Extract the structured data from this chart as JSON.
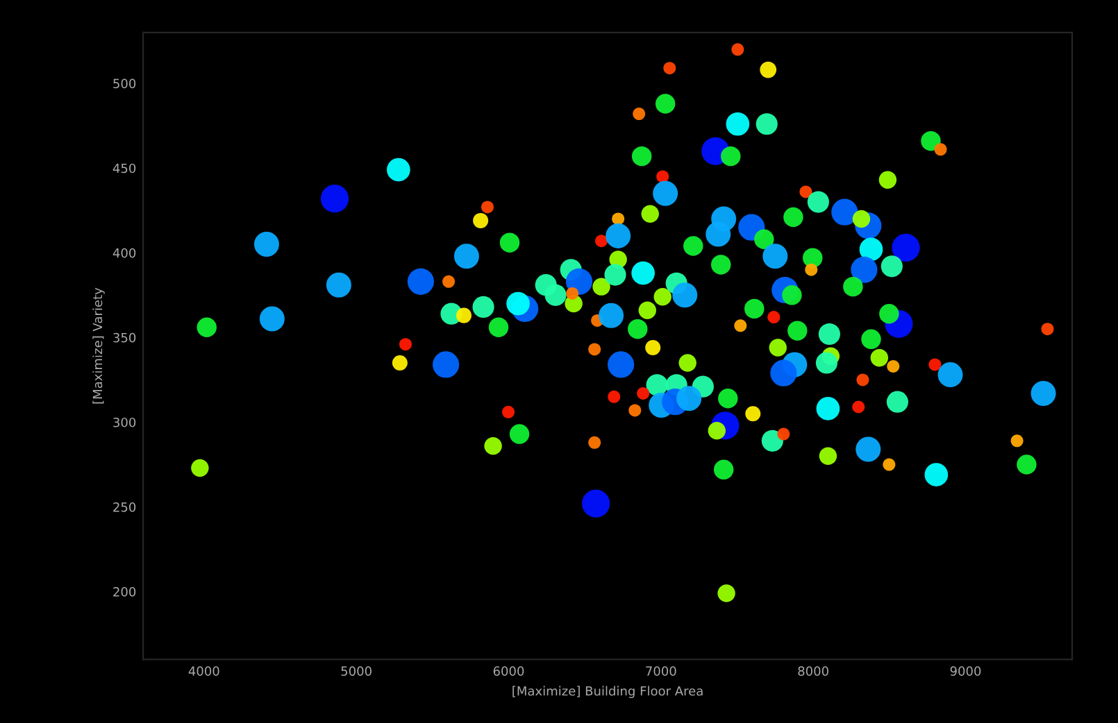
{
  "chart_data": {
    "type": "bubble",
    "xlabel": "[Maximize] Building Floor Area",
    "ylabel": "[Maximize] Variety",
    "xlim": [
      3600,
      9700
    ],
    "ylim": [
      160,
      530
    ],
    "xticks": [
      4000,
      5000,
      6000,
      7000,
      8000,
      9000
    ],
    "yticks": [
      200,
      250,
      300,
      350,
      400,
      450,
      500
    ],
    "grid": false,
    "legend": false,
    "x": [
      3973,
      4018,
      4411,
      4447,
      4858,
      4885,
      5277,
      5861,
      5816,
      6007,
      5724,
      5423,
      5606,
      5624,
      5706,
      5834,
      5934,
      6108,
      6062,
      5323,
      5286,
      5588,
      5998,
      6071,
      5898,
      6245,
      6308,
      6409,
      6463,
      6427,
      6418,
      6564,
      6692,
      6564,
      6573,
      6609,
      6582,
      6673,
      6737,
      6719,
      6719,
      6719,
      6609,
      6700,
      7504,
      7057,
      7704,
      7029,
      6856,
      7504,
      7695,
      7358,
      7458,
      6874,
      8772,
      8836,
      7011,
      7029,
      8489,
      7951,
      8033,
      8206,
      7869,
      6929,
      8361,
      8316,
      7412,
      7595,
      7376,
      7677,
      7212,
      8380,
      8608,
      7750,
      7996,
      7987,
      7394,
      6883,
      8516,
      8334,
      7102,
      7157,
      7011,
      6911,
      8261,
      7814,
      7860,
      7613,
      7522,
      7741,
      6847,
      8562,
      8498,
      7896,
      8106,
      8380,
      6947,
      7768,
      8434,
      8525,
      8115,
      8088,
      7175,
      7878,
      7805,
      8799,
      8900,
      9538,
      8325,
      6974,
      7102,
      7276,
      6883,
      6829,
      7002,
      7093,
      7184,
      7440,
      7604,
      7422,
      7367,
      8297,
      8553,
      8097,
      7732,
      7805,
      8097,
      8361,
      8498,
      8808,
      9511,
      9338,
      9401,
      7412,
      7430
    ],
    "values": [
      273,
      356,
      405,
      361,
      432,
      381,
      449,
      427,
      419,
      406,
      398,
      383,
      383,
      364,
      363,
      368,
      356,
      367,
      370,
      346,
      335,
      334,
      306,
      293,
      286,
      381,
      375,
      390,
      383,
      370,
      376,
      343,
      315,
      288,
      252,
      407,
      360,
      363,
      334,
      420,
      410,
      396,
      380,
      387,
      520,
      509,
      508,
      488,
      482,
      476,
      476,
      460,
      457,
      457,
      466,
      461,
      445,
      435,
      443,
      436,
      430,
      424,
      421,
      423,
      416,
      420,
      420,
      415,
      411,
      408,
      404,
      402,
      403,
      398,
      397,
      390,
      393,
      388,
      392,
      390,
      382,
      375,
      374,
      366,
      380,
      378,
      375,
      367,
      357,
      362,
      355,
      358,
      364,
      354,
      352,
      349,
      344,
      344,
      338,
      333,
      339,
      335,
      335,
      334,
      329,
      334,
      328,
      355,
      325,
      322,
      322,
      321,
      317,
      307,
      310,
      312,
      314,
      314,
      305,
      298,
      295,
      309,
      312,
      308,
      289,
      293,
      280,
      284,
      275,
      269,
      317,
      289,
      275,
      272,
      199
    ],
    "colors": [
      "#99ff00",
      "#11ee33",
      "#0aaaff",
      "#0aaaff",
      "#0011ff",
      "#0aaaff",
      "#00ffff",
      "#ff4400",
      "#ffee00",
      "#11ee33",
      "#0aaaff",
      "#0066ff",
      "#ff7700",
      "#22ffaa",
      "#ffee00",
      "#22ffaa",
      "#11ee33",
      "#0066ff",
      "#00ffff",
      "#ff1a00",
      "#ffee00",
      "#0066ff",
      "#ff1a00",
      "#11ee33",
      "#99ff00",
      "#22ffaa",
      "#22ffaa",
      "#22ffaa",
      "#0066ff",
      "#99ff00",
      "#ff7700",
      "#ff7700",
      "#ff1a00",
      "#ff7700",
      "#0011ff",
      "#ff1a00",
      "#ff7700",
      "#0aaaff",
      "#0066ff",
      "#ffaa00",
      "#0aaaff",
      "#99ff00",
      "#99ff00",
      "#22ffaa",
      "#ff4400",
      "#ff4400",
      "#ffee00",
      "#11ee33",
      "#ff7700",
      "#00ffff",
      "#22ffaa",
      "#0011ff",
      "#11ee33",
      "#11ee33",
      "#11ee33",
      "#ff7700",
      "#ff1a00",
      "#0aaaff",
      "#99ff00",
      "#ff4400",
      "#22ffaa",
      "#0066ff",
      "#11ee33",
      "#99ff00",
      "#0066ff",
      "#99ff00",
      "#0aaaff",
      "#0066ff",
      "#0aaaff",
      "#11ee33",
      "#11ee33",
      "#00ffff",
      "#0011ff",
      "#0aaaff",
      "#11ee33",
      "#ffaa00",
      "#11ee33",
      "#00ffff",
      "#22ffaa",
      "#0066ff",
      "#22ffaa",
      "#0aaaff",
      "#99ff00",
      "#99ff00",
      "#11ee33",
      "#0066ff",
      "#11ee33",
      "#11ee33",
      "#ffaa00",
      "#ff1a00",
      "#11ee33",
      "#0011ff",
      "#11ee33",
      "#11ee33",
      "#22ffaa",
      "#11ee33",
      "#ffee00",
      "#99ff00",
      "#99ff00",
      "#ffaa00",
      "#99ff00",
      "#22ffaa",
      "#99ff00",
      "#0aaaff",
      "#0066ff",
      "#ff1a00",
      "#0aaaff",
      "#ff4400",
      "#ff4400",
      "#22ffaa",
      "#22ffaa",
      "#22ffaa",
      "#ff1a00",
      "#ff7700",
      "#0aaaff",
      "#0066ff",
      "#0aaaff",
      "#11ee33",
      "#ffee00",
      "#0011ff",
      "#99ff00",
      "#ff1a00",
      "#22ffaa",
      "#00ffff",
      "#22ffaa",
      "#ff4400",
      "#99ff00",
      "#0aaaff",
      "#ffaa00",
      "#00ffff",
      "#0aaaff",
      "#ffaa00",
      "#11ee33",
      "#11ee33",
      "#99ff00"
    ],
    "sizes": [
      0.4,
      0.5,
      0.8,
      0.8,
      1,
      0.8,
      0.7,
      0.2,
      0.3,
      0.5,
      0.8,
      0.9,
      0.2,
      0.6,
      0.3,
      0.6,
      0.5,
      0.9,
      0.7,
      0.2,
      0.3,
      0.9,
      0.2,
      0.5,
      0.4,
      0.6,
      0.6,
      0.6,
      0.9,
      0.4,
      0.2,
      0.2,
      0.2,
      0.2,
      1,
      0.2,
      0.2,
      0.8,
      0.9,
      0.2,
      0.8,
      0.4,
      0.4,
      0.6,
      0.2,
      0.2,
      0.35,
      0.5,
      0.2,
      0.7,
      0.6,
      1,
      0.5,
      0.5,
      0.5,
      0.2,
      0.2,
      0.8,
      0.4,
      0.2,
      0.6,
      0.9,
      0.5,
      0.4,
      0.9,
      0.4,
      0.8,
      0.9,
      0.8,
      0.5,
      0.5,
      0.7,
      1,
      0.8,
      0.5,
      0.2,
      0.5,
      0.7,
      0.6,
      0.9,
      0.6,
      0.8,
      0.4,
      0.4,
      0.5,
      0.9,
      0.5,
      0.5,
      0.2,
      0.2,
      0.5,
      1,
      0.5,
      0.5,
      0.6,
      0.5,
      0.3,
      0.4,
      0.4,
      0.2,
      0.4,
      0.6,
      0.4,
      0.8,
      0.9,
      0.2,
      0.8,
      0.2,
      0.2,
      0.6,
      0.6,
      0.6,
      0.2,
      0.2,
      0.8,
      0.9,
      0.8,
      0.5,
      0.3,
      1,
      0.4,
      0.2,
      0.6,
      0.7,
      0.6,
      0.2,
      0.4,
      0.8,
      0.2,
      0.7,
      0.8,
      0.2,
      0.5,
      0.5,
      0.4
    ]
  }
}
